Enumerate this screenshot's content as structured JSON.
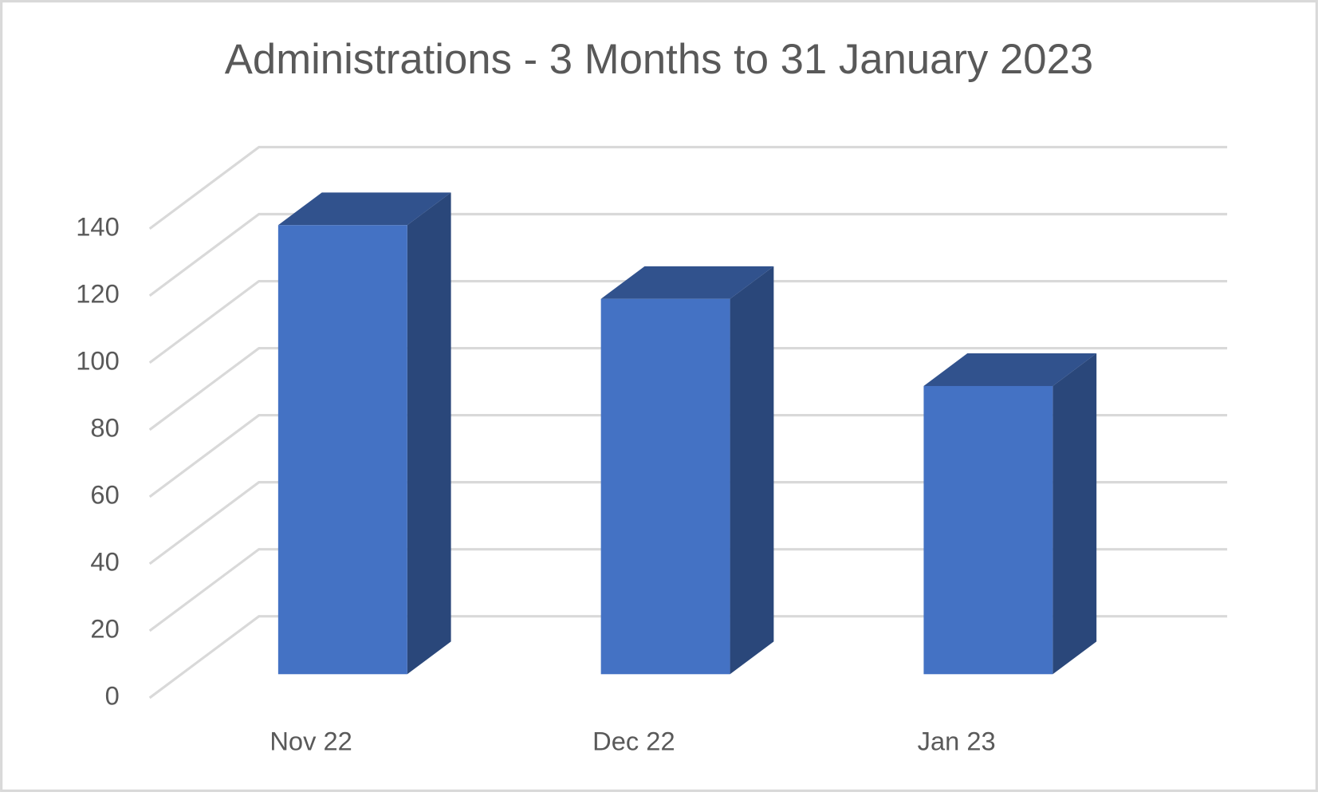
{
  "chart_data": {
    "type": "bar3d",
    "title": "Administrations - 3 Months to 31 January 2023",
    "categories": [
      "Nov 22",
      "Dec 22",
      "Jan 23"
    ],
    "values": [
      134,
      112,
      86
    ],
    "color": "#4472c4",
    "ylim": [
      0,
      140
    ],
    "yticks": [
      0,
      20,
      40,
      60,
      80,
      100,
      120,
      140
    ],
    "grid": true
  }
}
